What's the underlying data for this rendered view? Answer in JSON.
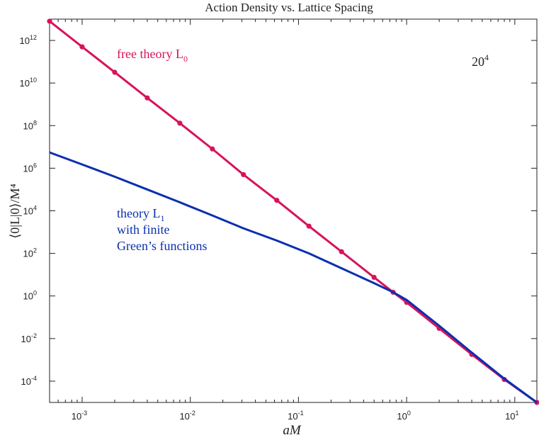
{
  "chart_data": {
    "type": "line",
    "title": "Action Density vs. Lattice Spacing",
    "xlabel": "aM",
    "ylabel": "⟨0|L|0⟩/M⁴",
    "x_scale": "log",
    "y_scale": "log",
    "xlim": [
      0.0005,
      16
    ],
    "ylim": [
      1e-05,
      10000000000000
    ],
    "x_ticks": [
      {
        "base": "10",
        "exp": "-3",
        "value": 0.001
      },
      {
        "base": "10",
        "exp": "-2",
        "value": 0.01
      },
      {
        "base": "10",
        "exp": "-1",
        "value": 0.1
      },
      {
        "base": "10",
        "exp": "0",
        "value": 1
      },
      {
        "base": "10",
        "exp": "1",
        "value": 10
      }
    ],
    "y_ticks": [
      {
        "base": "10",
        "exp": "12",
        "value": 1000000000000.0
      },
      {
        "base": "10",
        "exp": "10",
        "value": 10000000000.0
      },
      {
        "base": "10",
        "exp": "8",
        "value": 100000000.0
      },
      {
        "base": "10",
        "exp": "6",
        "value": 1000000.0
      },
      {
        "base": "10",
        "exp": "4",
        "value": 10000.0
      },
      {
        "base": "10",
        "exp": "2",
        "value": 100.0
      },
      {
        "base": "10",
        "exp": "0",
        "value": 1
      },
      {
        "base": "10",
        "exp": "-2",
        "value": 0.01
      },
      {
        "base": "10",
        "exp": "-4",
        "value": 0.0001
      }
    ],
    "series": [
      {
        "label_main": "free theory L",
        "label_sub": "0",
        "color": "#d8125b",
        "markers": true,
        "x": [
          0.0005,
          0.001,
          0.002,
          0.004,
          0.008,
          0.016,
          0.031,
          0.063,
          0.125,
          0.25,
          0.5,
          0.75,
          1,
          2,
          4,
          8,
          16
        ],
        "y": [
          8000000000000.0,
          500000000000.0,
          32000000000.0,
          2000000000.0,
          130000000.0,
          8000000.0,
          500000.0,
          31000.0,
          1900.0,
          120,
          7.5,
          1.5,
          0.5,
          0.03,
          0.0018,
          0.00012,
          1e-05
        ]
      },
      {
        "label_lines": [
          "theory L",
          "with finite",
          "Green’s functions"
        ],
        "label_sub": "1",
        "color": "#0a2fb0",
        "markers": false,
        "x": [
          0.0005,
          0.001,
          0.002,
          0.004,
          0.008,
          0.016,
          0.031,
          0.063,
          0.125,
          0.25,
          0.5,
          0.75,
          1,
          2,
          4,
          8,
          16
        ],
        "y": [
          5500000.0,
          1500000.0,
          400000.0,
          100000.0,
          25000.0,
          6000.0,
          1500.0,
          400,
          100,
          20,
          4,
          1.5,
          0.65,
          0.04,
          0.0022,
          0.00013,
          1e-05
        ]
      }
    ],
    "annotation": {
      "base": "20",
      "exp": "4"
    }
  }
}
